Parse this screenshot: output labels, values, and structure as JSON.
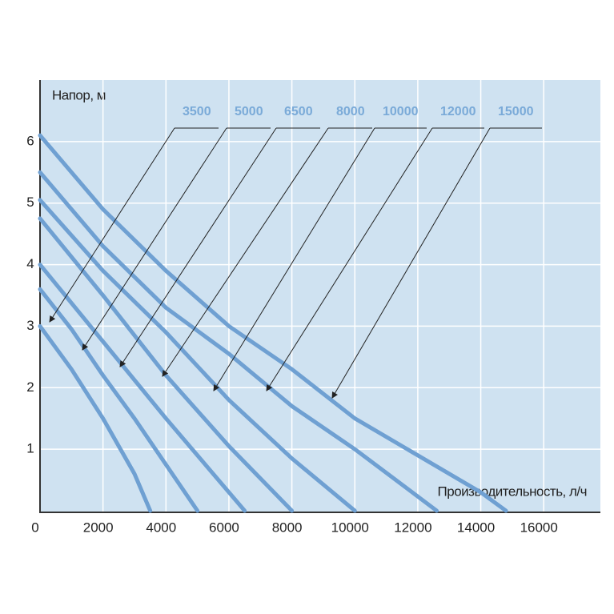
{
  "chart_data": {
    "type": "line",
    "y_label": "Напор, м",
    "x_label": "Производительность, л/ч",
    "xlim": [
      0,
      17800
    ],
    "ylim": [
      0,
      7
    ],
    "xticks": [
      0,
      2000,
      4000,
      6000,
      8000,
      10000,
      12000,
      14000,
      16000
    ],
    "yticks": [
      1,
      2,
      3,
      4,
      5,
      6
    ],
    "grid": true,
    "series": [
      {
        "name": "3500",
        "color": "#6fa0d2",
        "x": [
          0,
          1000,
          2000,
          3000,
          3500
        ],
        "values": [
          3.0,
          2.3,
          1.5,
          0.6,
          0
        ]
      },
      {
        "name": "5000",
        "color": "#6fa0d2",
        "x": [
          0,
          1000,
          2000,
          3000,
          4000,
          5000
        ],
        "values": [
          3.6,
          2.95,
          2.2,
          1.5,
          0.75,
          0
        ]
      },
      {
        "name": "6500",
        "color": "#6fa0d2",
        "x": [
          0,
          2000,
          4000,
          6500
        ],
        "values": [
          4.0,
          2.75,
          1.5,
          0
        ]
      },
      {
        "name": "8000",
        "color": "#6fa0d2",
        "x": [
          0,
          2000,
          4000,
          6000,
          8000
        ],
        "values": [
          4.75,
          3.5,
          2.2,
          1.05,
          0
        ]
      },
      {
        "name": "10000",
        "color": "#6fa0d2",
        "x": [
          0,
          2000,
          4000,
          6000,
          8000,
          10000
        ],
        "values": [
          5.05,
          3.9,
          2.9,
          1.8,
          0.85,
          0
        ]
      },
      {
        "name": "12000",
        "color": "#6fa0d2",
        "x": [
          0,
          2000,
          4000,
          6000,
          8000,
          10000,
          12600
        ],
        "values": [
          5.5,
          4.3,
          3.3,
          2.55,
          1.7,
          1.0,
          0
        ]
      },
      {
        "name": "15000",
        "color": "#6fa0d2",
        "x": [
          0,
          2000,
          4000,
          6000,
          8000,
          10000,
          12000,
          14000,
          14800
        ],
        "values": [
          6.1,
          4.9,
          3.9,
          3.0,
          2.3,
          1.5,
          0.9,
          0.3,
          0
        ]
      }
    ]
  }
}
